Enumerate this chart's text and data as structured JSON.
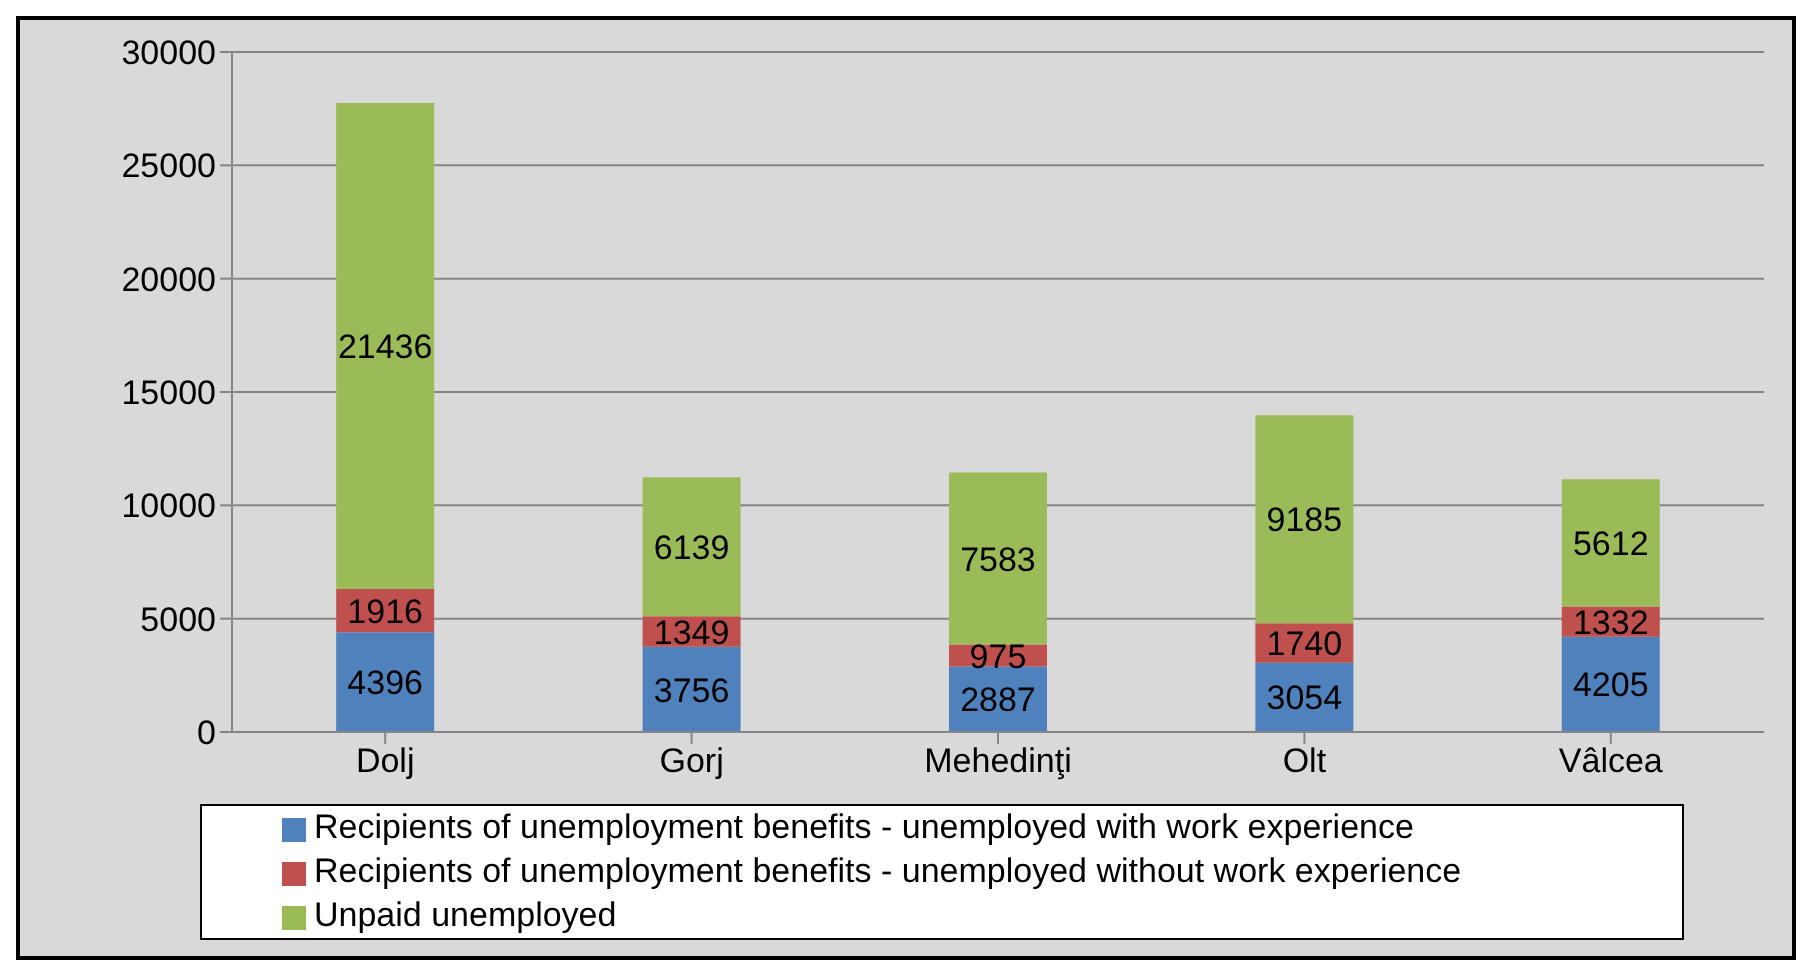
{
  "chart_data": {
    "type": "bar",
    "stacked": true,
    "categories": [
      "Dolj",
      "Gorj",
      "Mehedinţi",
      "Olt",
      "Vâlcea"
    ],
    "series": [
      {
        "name": "Recipients of unemployment benefits - unemployed with work experience",
        "color": "#4f81bd",
        "values": [
          4396,
          3756,
          2887,
          3054,
          4205
        ]
      },
      {
        "name": "Recipients of unemployment benefits - unemployed without work experience",
        "color": "#c0504d",
        "values": [
          1916,
          1349,
          975,
          1740,
          1332
        ]
      },
      {
        "name": "Unpaid unemployed",
        "color": "#9bbb59",
        "values": [
          21436,
          6139,
          7583,
          9185,
          5612
        ]
      }
    ],
    "ylim": [
      0,
      30000
    ],
    "yticks": [
      0,
      5000,
      10000,
      15000,
      20000,
      25000,
      30000
    ],
    "grid": "y",
    "legend": "bottom",
    "data_labels": true
  }
}
